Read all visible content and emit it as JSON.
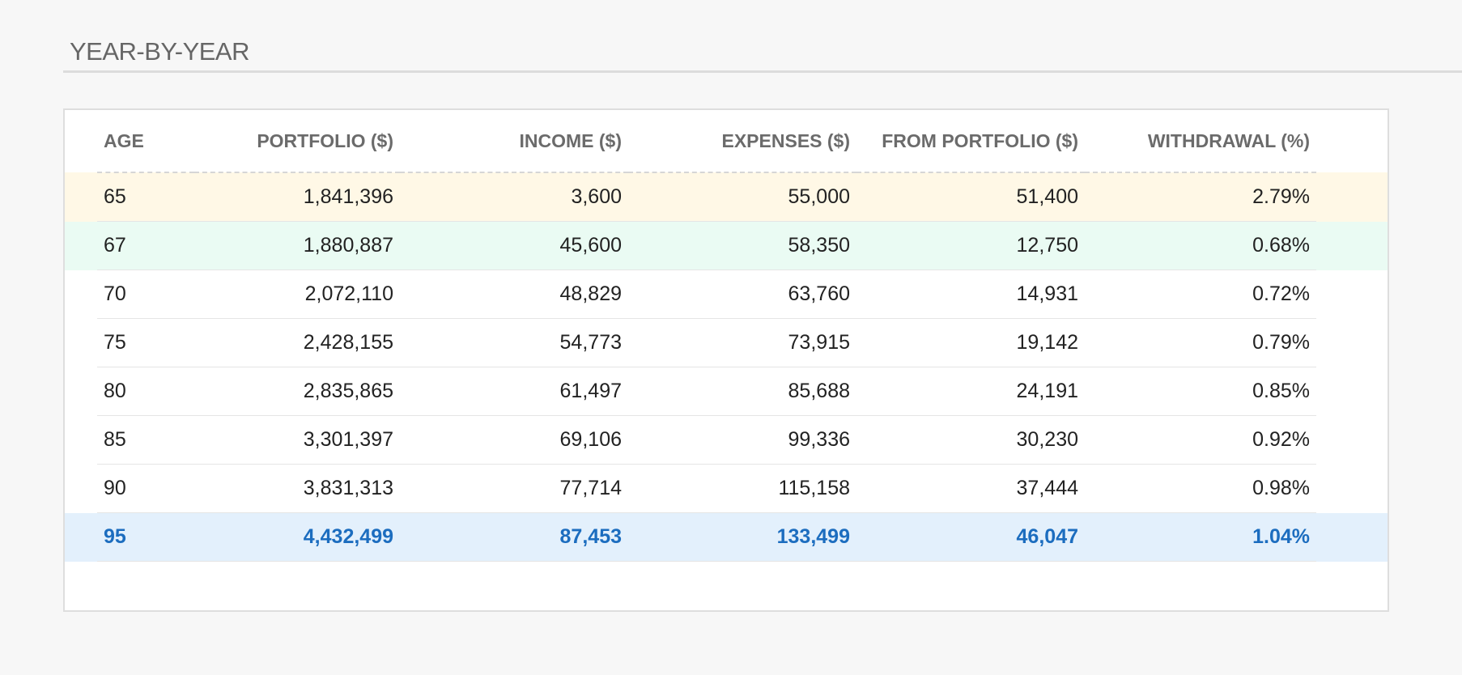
{
  "section": {
    "title": "YEAR-BY-YEAR"
  },
  "table": {
    "headers": {
      "age": "AGE",
      "portfolio": "PORTFOLIO ($)",
      "income": "INCOME ($)",
      "expenses": "EXPENSES ($)",
      "from_portfolio": "FROM PORTFOLIO ($)",
      "withdrawal": "WITHDRAWAL (%)"
    },
    "rows": [
      {
        "age": "65",
        "portfolio": "1,841,396",
        "income": "3,600",
        "expenses": "55,000",
        "from_portfolio": "51,400",
        "withdrawal": "2.79%",
        "highlight": "retirement"
      },
      {
        "age": "67",
        "portfolio": "1,880,887",
        "income": "45,600",
        "expenses": "58,350",
        "from_portfolio": "12,750",
        "withdrawal": "0.68%",
        "highlight": "social-security"
      },
      {
        "age": "70",
        "portfolio": "2,072,110",
        "income": "48,829",
        "expenses": "63,760",
        "from_portfolio": "14,931",
        "withdrawal": "0.72%",
        "highlight": "none"
      },
      {
        "age": "75",
        "portfolio": "2,428,155",
        "income": "54,773",
        "expenses": "73,915",
        "from_portfolio": "19,142",
        "withdrawal": "0.79%",
        "highlight": "none"
      },
      {
        "age": "80",
        "portfolio": "2,835,865",
        "income": "61,497",
        "expenses": "85,688",
        "from_portfolio": "24,191",
        "withdrawal": "0.85%",
        "highlight": "none"
      },
      {
        "age": "85",
        "portfolio": "3,301,397",
        "income": "69,106",
        "expenses": "99,336",
        "from_portfolio": "30,230",
        "withdrawal": "0.92%",
        "highlight": "none"
      },
      {
        "age": "90",
        "portfolio": "3,831,313",
        "income": "77,714",
        "expenses": "115,158",
        "from_portfolio": "37,444",
        "withdrawal": "0.98%",
        "highlight": "none"
      },
      {
        "age": "95",
        "portfolio": "4,432,499",
        "income": "87,453",
        "expenses": "133,499",
        "from_portfolio": "46,047",
        "withdrawal": "1.04%",
        "highlight": "final"
      }
    ]
  },
  "colors": {
    "retirement_row_bg": "#fff8e6",
    "social_security_row_bg": "#eafbf3",
    "final_row_bg": "#e3f0fc",
    "final_row_text": "#1c6dbf",
    "header_text": "#6b6b6b"
  }
}
